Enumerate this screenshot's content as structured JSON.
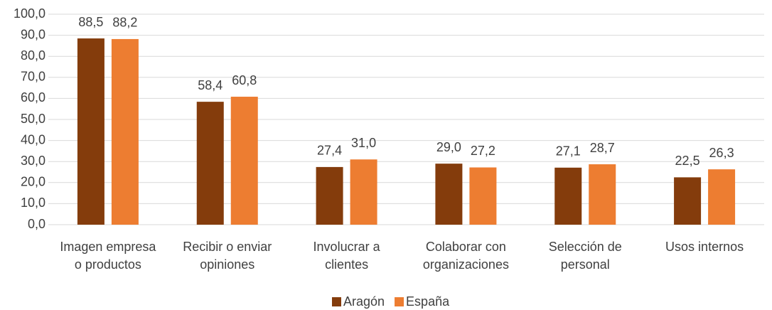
{
  "chart_data": {
    "type": "bar",
    "categories": [
      "Imagen empresa\no productos",
      "Recibir o enviar\nopiniones",
      "Involucrar a\nclientes",
      "Colaborar con\norganizaciones",
      "Selección de\npersonal",
      "Usos internos"
    ],
    "series": [
      {
        "name": "Aragón",
        "color": "#843c0c",
        "values": [
          88.5,
          58.4,
          27.4,
          29.0,
          27.1,
          22.5
        ],
        "value_labels": [
          "88,5",
          "58,4",
          "27,4",
          "29,0",
          "27,1",
          "22,5"
        ]
      },
      {
        "name": "España",
        "color": "#ed7d31",
        "values": [
          88.2,
          60.8,
          31.0,
          27.2,
          28.7,
          26.3
        ],
        "value_labels": [
          "88,2",
          "60,8",
          "31,0",
          "27,2",
          "28,7",
          "26,3"
        ]
      }
    ],
    "ylim": [
      0,
      100
    ],
    "yticks": [
      {
        "value": 0,
        "label": "0,0"
      },
      {
        "value": 10,
        "label": "10,0"
      },
      {
        "value": 20,
        "label": "20,0"
      },
      {
        "value": 30,
        "label": "30,0"
      },
      {
        "value": 40,
        "label": "40,0"
      },
      {
        "value": 50,
        "label": "50,0"
      },
      {
        "value": 60,
        "label": "60,0"
      },
      {
        "value": 70,
        "label": "70,0"
      },
      {
        "value": 80,
        "label": "80,0"
      },
      {
        "value": 90,
        "label": "90,0"
      },
      {
        "value": 100,
        "label": "100,0"
      }
    ],
    "grid": true,
    "legend": "bottom"
  }
}
